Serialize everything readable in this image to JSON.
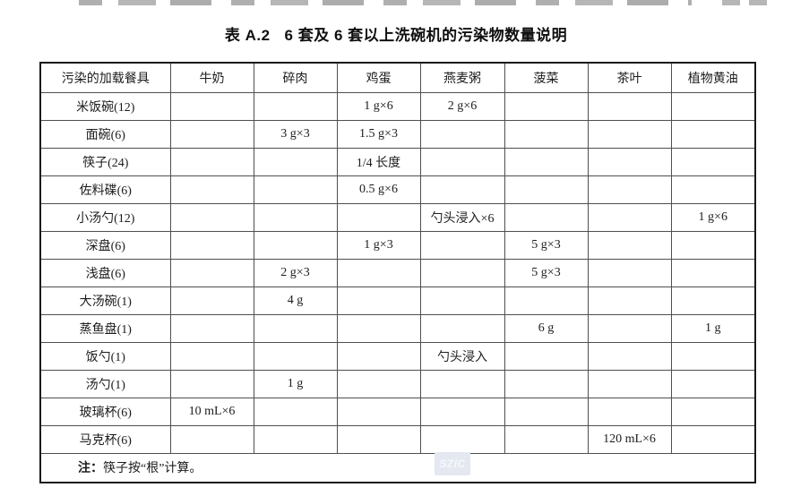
{
  "title": {
    "table_no": "表 A.2",
    "caption": "6 套及 6 套以上洗碗机的污染物数量说明"
  },
  "table": {
    "columns": [
      "污染的加载餐具",
      "牛奶",
      "碎肉",
      "鸡蛋",
      "燕麦粥",
      "菠菜",
      "茶叶",
      "植物黄油"
    ],
    "rows": [
      {
        "label": "米饭碗(12)",
        "cells": [
          "",
          "",
          "1 g×6",
          "2 g×6",
          "",
          "",
          ""
        ]
      },
      {
        "label": "面碗(6)",
        "cells": [
          "",
          "3 g×3",
          "1.5 g×3",
          "",
          "",
          "",
          ""
        ]
      },
      {
        "label": "筷子(24)",
        "cells": [
          "",
          "",
          "1/4 长度",
          "",
          "",
          "",
          ""
        ]
      },
      {
        "label": "佐料碟(6)",
        "cells": [
          "",
          "",
          "0.5 g×6",
          "",
          "",
          "",
          ""
        ]
      },
      {
        "label": "小汤勺(12)",
        "cells": [
          "",
          "",
          "",
          "勺头浸入×6",
          "",
          "",
          "1 g×6"
        ]
      },
      {
        "label": "深盘(6)",
        "cells": [
          "",
          "",
          "1 g×3",
          "",
          "5 g×3",
          "",
          ""
        ]
      },
      {
        "label": "浅盘(6)",
        "cells": [
          "",
          "2 g×3",
          "",
          "",
          "5 g×3",
          "",
          ""
        ]
      },
      {
        "label": "大汤碗(1)",
        "cells": [
          "",
          "4 g",
          "",
          "",
          "",
          "",
          ""
        ]
      },
      {
        "label": "蒸鱼盘(1)",
        "cells": [
          "",
          "",
          "",
          "",
          "6 g",
          "",
          "1 g"
        ]
      },
      {
        "label": "饭勺(1)",
        "cells": [
          "",
          "",
          "",
          "勺头浸入",
          "",
          "",
          ""
        ]
      },
      {
        "label": "汤勺(1)",
        "cells": [
          "",
          "1 g",
          "",
          "",
          "",
          "",
          ""
        ]
      },
      {
        "label": "玻璃杯(6)",
        "cells": [
          "10 mL×6",
          "",
          "",
          "",
          "",
          "",
          ""
        ]
      },
      {
        "label": "马克杯(6)",
        "cells": [
          "",
          "",
          "",
          "",
          "",
          "120 mL×6",
          ""
        ]
      }
    ],
    "note_label": "注：",
    "note_text": "筷子按“根”计算。"
  },
  "watermark": {
    "text": "SZIC"
  },
  "colors": {
    "paper": "#ffffff",
    "border_outer": "#1a1a1a",
    "border_inner": "#4f4f4f",
    "text": "#1c1c1c",
    "watermark_bg": "#e4e8f0"
  }
}
